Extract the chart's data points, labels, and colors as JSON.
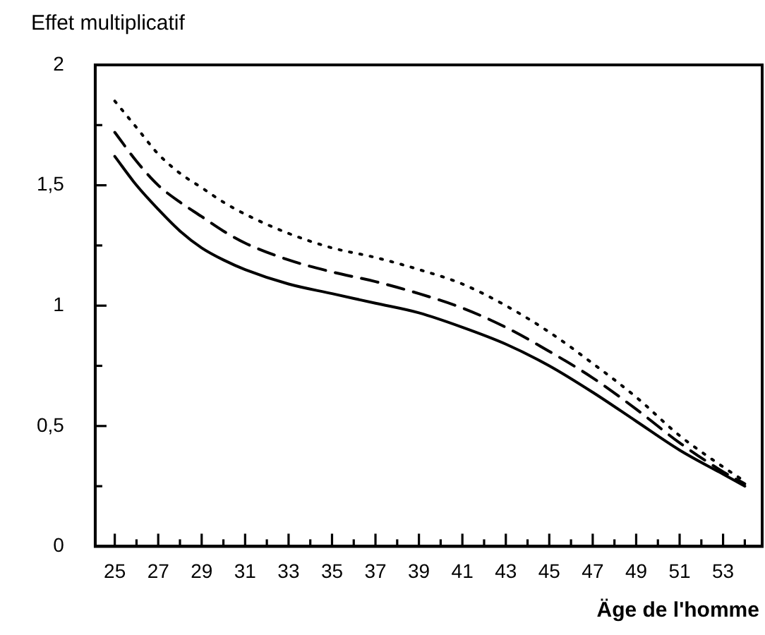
{
  "chart_data": {
    "type": "line",
    "ylabel": "Effet multiplicatif",
    "xlabel": "Äge de l'homme",
    "xlim": [
      24.1,
      54.8
    ],
    "xticks": [
      25,
      {
        "value": 26,
        "label": null
      },
      27,
      {
        "value": 28,
        "label": null
      },
      29,
      {
        "value": 30,
        "label": null
      },
      31,
      {
        "value": 32,
        "label": null
      },
      33,
      {
        "value": 34,
        "label": null
      },
      35,
      {
        "value": 36,
        "label": null
      },
      37,
      {
        "value": 38,
        "label": null
      },
      39,
      {
        "value": 40,
        "label": null
      },
      41,
      {
        "value": 42,
        "label": null
      },
      43,
      {
        "value": 44,
        "label": null
      },
      45,
      {
        "value": 46,
        "label": null
      },
      47,
      {
        "value": 48,
        "label": null
      },
      49,
      {
        "value": 50,
        "label": null
      },
      51,
      {
        "value": 52,
        "label": null
      },
      53,
      {
        "value": 54,
        "label": null
      }
    ],
    "ylim": [
      0,
      2
    ],
    "yticks": [
      {
        "value": 0,
        "label": "0"
      },
      {
        "value": 0.25,
        "label": null
      },
      {
        "value": 0.5,
        "label": "0,5"
      },
      {
        "value": 0.75,
        "label": null
      },
      {
        "value": 1,
        "label": "1"
      },
      {
        "value": 1.25,
        "label": null
      },
      {
        "value": 1.5,
        "label": "1,5"
      },
      {
        "value": 1.75,
        "label": null
      },
      {
        "value": 2,
        "label": "2"
      }
    ],
    "grid": false,
    "legend": false,
    "marker": "none",
    "x": [
      25,
      26,
      27,
      28,
      29,
      30,
      31,
      33,
      35,
      37,
      39,
      41,
      43,
      45,
      47,
      49,
      51,
      53,
      54
    ],
    "series": [
      {
        "color": "#000000",
        "line_style": "solid",
        "values": [
          1.62,
          1.5,
          1.4,
          1.31,
          1.24,
          1.19,
          1.15,
          1.09,
          1.05,
          1.01,
          0.97,
          0.91,
          0.84,
          0.75,
          0.64,
          0.52,
          0.4,
          0.3,
          0.25
        ]
      },
      {
        "color": "#000000",
        "line_style": "dashed",
        "values": [
          1.72,
          1.6,
          1.5,
          1.43,
          1.37,
          1.31,
          1.26,
          1.19,
          1.14,
          1.1,
          1.05,
          0.99,
          0.91,
          0.81,
          0.7,
          0.57,
          0.43,
          0.31,
          0.26
        ]
      },
      {
        "color": "#000000",
        "line_style": "dotted",
        "values": [
          1.85,
          1.74,
          1.63,
          1.55,
          1.49,
          1.43,
          1.38,
          1.3,
          1.24,
          1.2,
          1.15,
          1.09,
          1.0,
          0.89,
          0.76,
          0.62,
          0.46,
          0.33,
          0.27
        ]
      }
    ]
  }
}
